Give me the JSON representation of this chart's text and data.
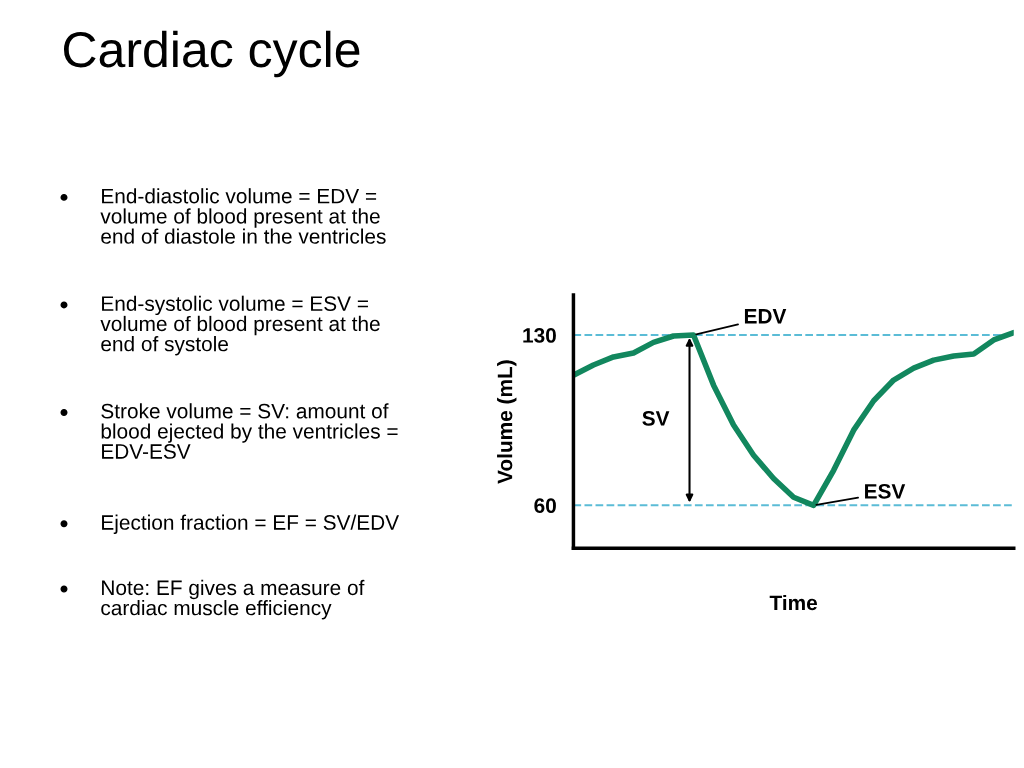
{
  "chart_data": {
    "type": "line",
    "title": "Cardiac cycle",
    "ylabel": "Volume (mL)",
    "xlabel": "Time",
    "categories": [
      null,
      null,
      null,
      null,
      null,
      null,
      null,
      null,
      null,
      null,
      null,
      null,
      null,
      null,
      null,
      null,
      null,
      null,
      null,
      null,
      null,
      null,
      null
    ],
    "series": [
      {
        "color": "#12875e",
        "values": [
          113.5,
          117.7,
          121,
          122.6,
          127,
          129.6,
          130,
          109.4,
          93,
          80.6,
          71,
          63.3,
          60,
          74.4,
          90.9,
          103,
          111.5,
          116.4,
          119.7,
          121.4,
          122.2,
          128,
          131
        ]
      }
    ],
    "ylim": [
      42.3,
      146.5
    ],
    "yticks": [
      60,
      130
    ],
    "ref_lines": [
      {
        "axis": "y",
        "value": 130,
        "color": "#5bbcd6",
        "line_style": "dashed"
      },
      {
        "axis": "y",
        "value": 60,
        "color": "#5bbcd6",
        "line_style": "dashed"
      }
    ],
    "annotations": [
      {
        "text": "EDV",
        "y": 130
      },
      {
        "text": "ESV",
        "y": 60
      },
      "SV",
      "End-diastolic volume = EDV =\nvolume of blood present at the\nend of diastole in the ventricles",
      "End-systolic volume = ESV =\nvolume of blood present at the\nend of systole",
      "Stroke volume = SV: amount of\nblood ejected by the ventricles =\nEDV-ESV",
      "Ejection fraction = EF = SV/EDV",
      "Note: EF gives a measure of\ncardiac muscle efficiency"
    ],
    "grid": false,
    "legend": false,
    "marker": "none",
    "line_style": "solid"
  }
}
